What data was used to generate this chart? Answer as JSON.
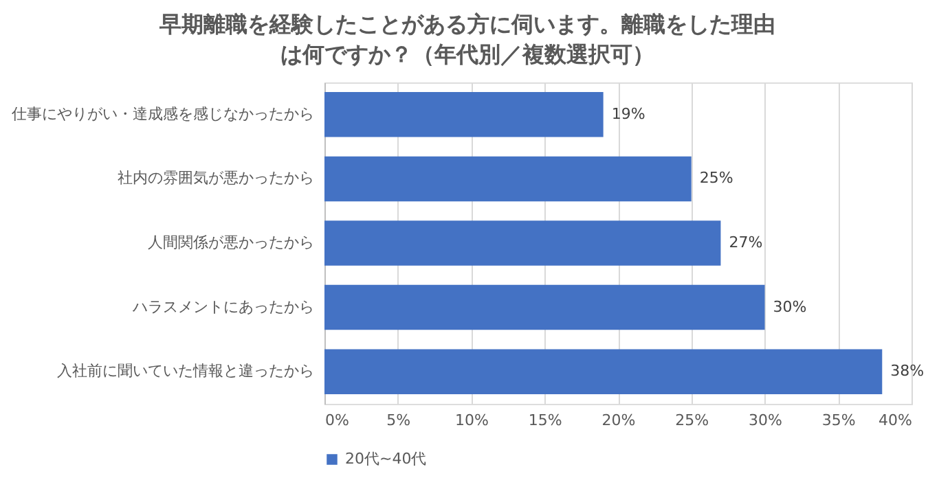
{
  "chart_data": {
    "type": "bar",
    "orientation": "horizontal",
    "title": "早期離職を経験したことがある方に伺います。離職をした理由",
    "subtitle": "は何ですか？（年代別／複数選択可）",
    "categories": [
      "仕事にやりがい・達成感を感じなかったから",
      "社内の雰囲気が悪かったから",
      "人間関係が悪かったから",
      "ハラスメントにあったから",
      "入社前に聞いていた情報と違ったから"
    ],
    "series": [
      {
        "name": "20代~40代",
        "color": "#4472c4",
        "values": [
          19,
          25,
          27,
          30,
          38
        ],
        "value_labels": [
          "19%",
          "25%",
          "27%",
          "30%",
          "38%"
        ]
      }
    ],
    "xlim": [
      0,
      40
    ],
    "xticks": [
      {
        "value": 0,
        "label": "0%"
      },
      {
        "value": 5,
        "label": "5%"
      },
      {
        "value": 10,
        "label": "10%"
      },
      {
        "value": 15,
        "label": "15%"
      },
      {
        "value": 20,
        "label": "20%"
      },
      {
        "value": 25,
        "label": "25%"
      },
      {
        "value": 30,
        "label": "30%"
      },
      {
        "value": 35,
        "label": "35%"
      },
      {
        "value": 40,
        "label": "40%"
      }
    ],
    "grid": "x",
    "legend": "bottom"
  }
}
